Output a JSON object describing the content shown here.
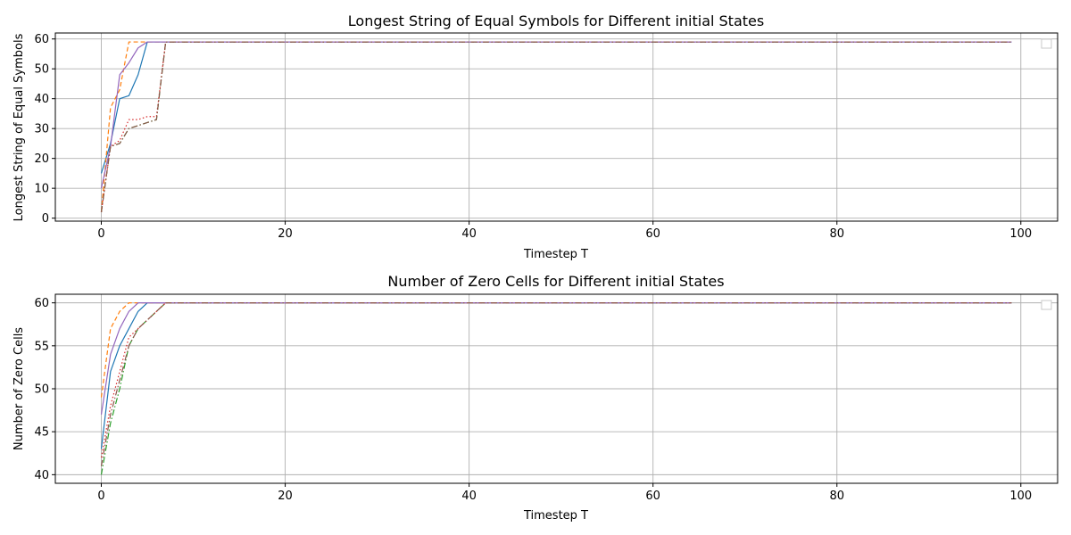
{
  "chart_data": [
    {
      "type": "line",
      "title": "Longest String of Equal Symbols for Different initial States",
      "xlabel": "Timestep T",
      "ylabel": "Longest String of Equal Symbols",
      "xlim": [
        -5,
        104
      ],
      "ylim": [
        -1,
        62
      ],
      "xticks": [
        0,
        20,
        40,
        60,
        80,
        100
      ],
      "yticks": [
        0,
        10,
        20,
        30,
        40,
        50,
        60
      ],
      "grid": true,
      "legend": "top-right (empty)",
      "x_end": 99,
      "series": [
        {
          "color": "#1f77b4",
          "dash": "solid",
          "points": [
            [
              0,
              15
            ],
            [
              1,
              25
            ],
            [
              2,
              40
            ],
            [
              3,
              41
            ],
            [
              4,
              48
            ],
            [
              5,
              59
            ]
          ]
        },
        {
          "color": "#ff7f0e",
          "dash": "dashed",
          "points": [
            [
              0,
              2
            ],
            [
              1,
              37
            ],
            [
              2,
              43
            ],
            [
              3,
              59
            ],
            [
              4,
              59
            ]
          ]
        },
        {
          "color": "#2ca02c",
          "dash": "dashdot",
          "points": [
            [
              0,
              2
            ],
            [
              1,
              24
            ],
            [
              2,
              25
            ],
            [
              3,
              30
            ],
            [
              4,
              31
            ],
            [
              5,
              32
            ],
            [
              6,
              33
            ],
            [
              7,
              59
            ]
          ]
        },
        {
          "color": "#d62728",
          "dash": "dotted",
          "points": [
            [
              0,
              2
            ],
            [
              1,
              24
            ],
            [
              2,
              26
            ],
            [
              3,
              33
            ],
            [
              4,
              33
            ],
            [
              5,
              34
            ],
            [
              6,
              34
            ],
            [
              7,
              59
            ]
          ]
        },
        {
          "color": "#9467bd",
          "dash": "solid",
          "points": [
            [
              0,
              10
            ],
            [
              1,
              24
            ],
            [
              2,
              48
            ],
            [
              3,
              52
            ],
            [
              4,
              57
            ],
            [
              5,
              59
            ]
          ]
        },
        {
          "color": "#8c564b",
          "dash": "dashdot",
          "points": [
            [
              0,
              2
            ],
            [
              1,
              24
            ],
            [
              2,
              25
            ],
            [
              3,
              30
            ],
            [
              4,
              31
            ],
            [
              5,
              32
            ],
            [
              6,
              33
            ],
            [
              7,
              59
            ]
          ]
        }
      ]
    },
    {
      "type": "line",
      "title": "Number of Zero Cells for Different initial States",
      "xlabel": "Timestep T",
      "ylabel": "Number of Zero Cells",
      "xlim": [
        -5,
        104
      ],
      "ylim": [
        39,
        61
      ],
      "xticks": [
        0,
        20,
        40,
        60,
        80,
        100
      ],
      "yticks": [
        40,
        45,
        50,
        55,
        60
      ],
      "grid": true,
      "legend": "top-right (empty)",
      "x_end": 99,
      "series": [
        {
          "color": "#1f77b4",
          "dash": "solid",
          "points": [
            [
              0,
              43
            ],
            [
              1,
              52
            ],
            [
              2,
              55
            ],
            [
              3,
              57
            ],
            [
              4,
              59
            ],
            [
              5,
              60
            ]
          ]
        },
        {
          "color": "#ff7f0e",
          "dash": "dashed",
          "points": [
            [
              0,
              49
            ],
            [
              1,
              57
            ],
            [
              2,
              59
            ],
            [
              3,
              60
            ]
          ]
        },
        {
          "color": "#2ca02c",
          "dash": "dashdot",
          "points": [
            [
              0,
              40
            ],
            [
              1,
              46
            ],
            [
              2,
              50
            ],
            [
              3,
              55
            ],
            [
              4,
              57
            ],
            [
              5,
              58
            ],
            [
              6,
              59
            ],
            [
              7,
              60
            ]
          ]
        },
        {
          "color": "#d62728",
          "dash": "dotted",
          "points": [
            [
              0,
              42
            ],
            [
              1,
              48
            ],
            [
              2,
              52
            ],
            [
              3,
              56
            ],
            [
              4,
              57
            ],
            [
              5,
              58
            ],
            [
              6,
              59
            ],
            [
              7,
              60
            ]
          ]
        },
        {
          "color": "#9467bd",
          "dash": "solid",
          "points": [
            [
              0,
              47
            ],
            [
              1,
              54
            ],
            [
              2,
              57
            ],
            [
              3,
              59
            ],
            [
              4,
              60
            ]
          ]
        },
        {
          "color": "#8c564b",
          "dash": "dashdot",
          "points": [
            [
              0,
              41
            ],
            [
              1,
              47
            ],
            [
              2,
              51
            ],
            [
              3,
              55
            ],
            [
              4,
              57
            ],
            [
              5,
              58
            ],
            [
              6,
              59
            ],
            [
              7,
              60
            ]
          ]
        }
      ]
    }
  ]
}
